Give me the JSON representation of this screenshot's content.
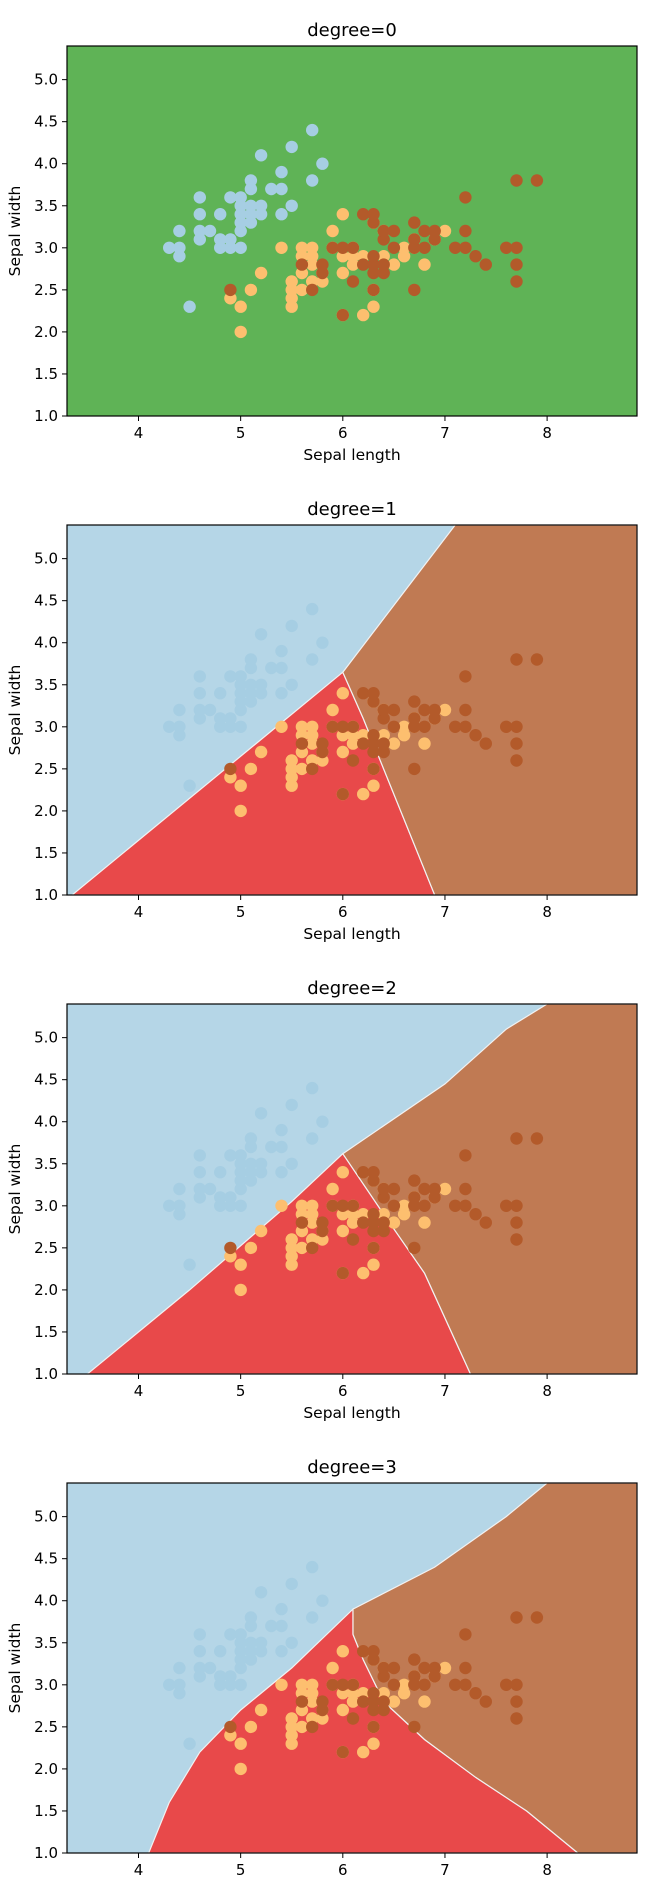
{
  "chart_data": [
    {
      "type": "scatter",
      "title": "degree=0",
      "xlabel": "Sepal length",
      "ylabel": "Sepal width",
      "xlim": [
        3.3,
        8.88
      ],
      "ylim": [
        1.0,
        5.4
      ],
      "xticks": [
        "4",
        "5",
        "6",
        "7",
        "8"
      ],
      "yticks": [
        "1.0",
        "1.5",
        "2.0",
        "2.5",
        "3.0",
        "3.5",
        "4.0",
        "4.5",
        "5.0"
      ],
      "grid": false,
      "background_region": "green",
      "regions": []
    },
    {
      "type": "scatter",
      "title": "degree=1",
      "xlabel": "Sepal length",
      "ylabel": "Sepal width",
      "xlim": [
        3.3,
        8.88
      ],
      "ylim": [
        1.0,
        5.4
      ],
      "xticks": [
        "4",
        "5",
        "6",
        "7",
        "8"
      ],
      "yticks": [
        "1.0",
        "1.5",
        "2.0",
        "2.5",
        "3.0",
        "3.5",
        "4.0",
        "4.5",
        "5.0"
      ],
      "grid": false,
      "background_region": "light-blue",
      "regions": [
        {
          "color_role": "red",
          "polygon": [
            [
              3.35,
              1.0
            ],
            [
              6.0,
              3.65
            ],
            [
              6.2,
              3.1
            ],
            [
              6.9,
              1.0
            ]
          ]
        },
        {
          "color_role": "brown",
          "polygon": [
            [
              6.0,
              3.65
            ],
            [
              7.1,
              5.4
            ],
            [
              8.88,
              5.4
            ],
            [
              8.88,
              1.0
            ],
            [
              6.9,
              1.0
            ],
            [
              6.2,
              3.1
            ]
          ]
        }
      ]
    },
    {
      "type": "scatter",
      "title": "degree=2",
      "xlabel": "Sepal length",
      "ylabel": "Sepal width",
      "xlim": [
        3.3,
        8.88
      ],
      "ylim": [
        1.0,
        5.4
      ],
      "xticks": [
        "4",
        "5",
        "6",
        "7",
        "8"
      ],
      "yticks": [
        "1.0",
        "1.5",
        "2.0",
        "2.5",
        "3.0",
        "3.5",
        "4.0",
        "4.5",
        "5.0"
      ],
      "grid": false,
      "background_region": "light-blue",
      "regions": [
        {
          "color_role": "red",
          "polygon": [
            [
              3.5,
              1.0
            ],
            [
              4.5,
              2.0
            ],
            [
              5.5,
              3.05
            ],
            [
              6.0,
              3.62
            ],
            [
              6.4,
              2.9
            ],
            [
              6.8,
              2.2
            ],
            [
              7.25,
              1.0
            ]
          ]
        },
        {
          "color_role": "brown",
          "polygon": [
            [
              6.0,
              3.62
            ],
            [
              7.0,
              4.45
            ],
            [
              7.6,
              5.1
            ],
            [
              8.0,
              5.4
            ],
            [
              8.88,
              5.4
            ],
            [
              8.88,
              1.0
            ],
            [
              7.25,
              1.0
            ],
            [
              6.8,
              2.2
            ],
            [
              6.4,
              2.9
            ]
          ]
        }
      ]
    },
    {
      "type": "scatter",
      "title": "degree=3",
      "xlabel": "Sepal length",
      "ylabel": "Sepal width",
      "xlim": [
        3.3,
        8.88
      ],
      "ylim": [
        1.0,
        5.4
      ],
      "xticks": [
        "4",
        "5",
        "6",
        "7",
        "8"
      ],
      "yticks": [
        "1.0",
        "1.5",
        "2.0",
        "2.5",
        "3.0",
        "3.5",
        "4.0",
        "4.5",
        "5.0"
      ],
      "grid": false,
      "background_region": "light-blue",
      "regions": [
        {
          "color_role": "red",
          "polygon": [
            [
              4.1,
              1.0
            ],
            [
              4.3,
              1.6
            ],
            [
              4.6,
              2.2
            ],
            [
              5.0,
              2.7
            ],
            [
              5.5,
              3.2
            ],
            [
              6.1,
              3.9
            ],
            [
              6.1,
              3.6
            ],
            [
              6.2,
              3.3
            ],
            [
              6.4,
              2.8
            ],
            [
              6.8,
              2.35
            ],
            [
              7.3,
              1.9
            ],
            [
              7.8,
              1.5
            ],
            [
              8.3,
              1.0
            ]
          ]
        },
        {
          "color_role": "brown",
          "polygon": [
            [
              6.1,
              3.9
            ],
            [
              6.9,
              4.4
            ],
            [
              7.6,
              5.0
            ],
            [
              8.0,
              5.4
            ],
            [
              8.88,
              5.4
            ],
            [
              8.88,
              1.0
            ],
            [
              8.3,
              1.0
            ],
            [
              7.8,
              1.5
            ],
            [
              7.3,
              1.9
            ],
            [
              6.8,
              2.35
            ],
            [
              6.4,
              2.8
            ],
            [
              6.2,
              3.3
            ],
            [
              6.1,
              3.6
            ]
          ]
        }
      ]
    }
  ],
  "series": [
    {
      "class": "setosa",
      "color_role": "light-blue",
      "points": [
        [
          4.3,
          3.0
        ],
        [
          4.4,
          2.9
        ],
        [
          4.4,
          3.0
        ],
        [
          4.4,
          3.2
        ],
        [
          4.5,
          2.3
        ],
        [
          4.6,
          3.1
        ],
        [
          4.6,
          3.2
        ],
        [
          4.6,
          3.4
        ],
        [
          4.6,
          3.6
        ],
        [
          4.7,
          3.2
        ],
        [
          4.8,
          3.0
        ],
        [
          4.8,
          3.1
        ],
        [
          4.8,
          3.4
        ],
        [
          4.9,
          3.0
        ],
        [
          4.9,
          3.1
        ],
        [
          4.9,
          3.6
        ],
        [
          5.0,
          3.0
        ],
        [
          5.0,
          3.2
        ],
        [
          5.0,
          3.3
        ],
        [
          5.0,
          3.4
        ],
        [
          5.0,
          3.5
        ],
        [
          5.0,
          3.6
        ],
        [
          5.1,
          3.3
        ],
        [
          5.1,
          3.4
        ],
        [
          5.1,
          3.5
        ],
        [
          5.1,
          3.7
        ],
        [
          5.1,
          3.8
        ],
        [
          5.2,
          3.4
        ],
        [
          5.2,
          3.5
        ],
        [
          5.2,
          4.1
        ],
        [
          5.3,
          3.7
        ],
        [
          5.4,
          3.4
        ],
        [
          5.4,
          3.7
        ],
        [
          5.4,
          3.9
        ],
        [
          5.5,
          3.5
        ],
        [
          5.5,
          4.2
        ],
        [
          5.7,
          3.8
        ],
        [
          5.7,
          4.4
        ],
        [
          5.8,
          4.0
        ]
      ]
    },
    {
      "class": "versicolor",
      "color_role": "light-orange",
      "points": [
        [
          4.9,
          2.4
        ],
        [
          5.0,
          2.0
        ],
        [
          5.0,
          2.3
        ],
        [
          5.1,
          2.5
        ],
        [
          5.2,
          2.7
        ],
        [
          5.4,
          3.0
        ],
        [
          5.5,
          2.3
        ],
        [
          5.5,
          2.4
        ],
        [
          5.5,
          2.5
        ],
        [
          5.5,
          2.6
        ],
        [
          5.6,
          2.5
        ],
        [
          5.6,
          2.7
        ],
        [
          5.6,
          2.9
        ],
        [
          5.6,
          3.0
        ],
        [
          5.7,
          2.6
        ],
        [
          5.7,
          2.8
        ],
        [
          5.7,
          2.9
        ],
        [
          5.7,
          3.0
        ],
        [
          5.8,
          2.6
        ],
        [
          5.8,
          2.7
        ],
        [
          5.9,
          3.0
        ],
        [
          5.9,
          3.2
        ],
        [
          6.0,
          2.2
        ],
        [
          6.0,
          2.7
        ],
        [
          6.0,
          2.9
        ],
        [
          6.0,
          3.4
        ],
        [
          6.1,
          2.8
        ],
        [
          6.1,
          2.9
        ],
        [
          6.1,
          3.0
        ],
        [
          6.2,
          2.2
        ],
        [
          6.2,
          2.9
        ],
        [
          6.3,
          2.3
        ],
        [
          6.3,
          2.5
        ],
        [
          6.3,
          3.3
        ],
        [
          6.4,
          2.9
        ],
        [
          6.4,
          3.2
        ],
        [
          6.5,
          2.8
        ],
        [
          6.6,
          2.9
        ],
        [
          6.6,
          3.0
        ],
        [
          6.7,
          3.0
        ],
        [
          6.7,
          3.1
        ],
        [
          6.8,
          2.8
        ],
        [
          6.9,
          3.1
        ],
        [
          7.0,
          3.2
        ]
      ]
    },
    {
      "class": "virginica",
      "color_role": "dark-orange",
      "points": [
        [
          4.9,
          2.5
        ],
        [
          5.6,
          2.8
        ],
        [
          5.7,
          2.5
        ],
        [
          5.8,
          2.7
        ],
        [
          5.8,
          2.8
        ],
        [
          5.9,
          3.0
        ],
        [
          6.0,
          2.2
        ],
        [
          6.0,
          3.0
        ],
        [
          6.1,
          2.6
        ],
        [
          6.1,
          3.0
        ],
        [
          6.2,
          2.8
        ],
        [
          6.2,
          3.4
        ],
        [
          6.3,
          2.5
        ],
        [
          6.3,
          2.7
        ],
        [
          6.3,
          2.8
        ],
        [
          6.3,
          2.9
        ],
        [
          6.3,
          3.3
        ],
        [
          6.3,
          3.4
        ],
        [
          6.4,
          2.7
        ],
        [
          6.4,
          2.8
        ],
        [
          6.4,
          3.1
        ],
        [
          6.4,
          3.2
        ],
        [
          6.5,
          3.0
        ],
        [
          6.5,
          3.2
        ],
        [
          6.7,
          2.5
        ],
        [
          6.7,
          3.0
        ],
        [
          6.7,
          3.1
        ],
        [
          6.7,
          3.3
        ],
        [
          6.8,
          3.0
        ],
        [
          6.8,
          3.2
        ],
        [
          6.9,
          3.1
        ],
        [
          6.9,
          3.2
        ],
        [
          7.1,
          3.0
        ],
        [
          7.2,
          3.0
        ],
        [
          7.2,
          3.2
        ],
        [
          7.2,
          3.6
        ],
        [
          7.3,
          2.9
        ],
        [
          7.4,
          2.8
        ],
        [
          7.6,
          3.0
        ],
        [
          7.7,
          2.6
        ],
        [
          7.7,
          2.8
        ],
        [
          7.7,
          3.0
        ],
        [
          7.7,
          3.8
        ],
        [
          7.9,
          3.8
        ]
      ]
    }
  ],
  "colors": {
    "green": "#5fb356",
    "light-blue": "#b5d6e7",
    "red": "#e8494a",
    "brown": "#c07a53",
    "point-light-blue": "#a6cee3",
    "point-light-orange": "#fdbf6f",
    "point-dark-orange": "#b35a2a"
  }
}
